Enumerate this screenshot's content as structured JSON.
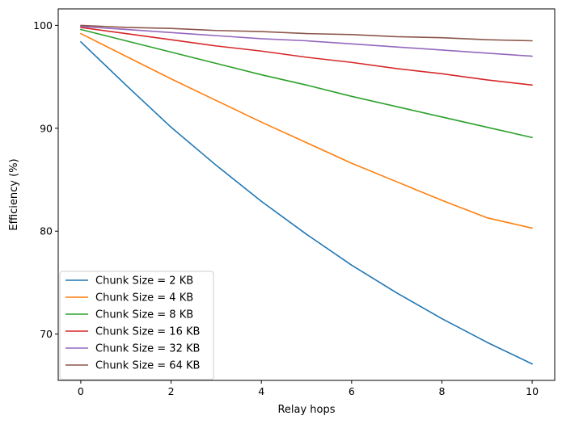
{
  "chart_data": {
    "type": "line",
    "title": "",
    "xlabel": "Relay hops",
    "ylabel": "Efficiency (%)",
    "xlim": [
      -0.5,
      10.5
    ],
    "ylim": [
      65.5,
      101.6
    ],
    "x_ticks": [
      0,
      2,
      4,
      6,
      8,
      10
    ],
    "y_ticks": [
      70,
      80,
      90,
      100
    ],
    "grid": false,
    "legend_position": "lower-left",
    "x": [
      0,
      1,
      2,
      3,
      4,
      5,
      6,
      7,
      8,
      9,
      10
    ],
    "series": [
      {
        "name": "Chunk Size = 2 KB",
        "color": "#1f77b4",
        "values": [
          98.4,
          94.2,
          90.1,
          86.4,
          82.9,
          79.7,
          76.7,
          74.0,
          71.5,
          69.2,
          67.1
        ]
      },
      {
        "name": "Chunk Size = 4 KB",
        "color": "#ff7f0e",
        "values": [
          99.2,
          97.0,
          94.8,
          92.7,
          90.6,
          88.6,
          86.6,
          84.8,
          83.0,
          81.3,
          80.3
        ]
      },
      {
        "name": "Chunk Size = 8 KB",
        "color": "#2ca02c",
        "values": [
          99.6,
          98.5,
          97.4,
          96.3,
          95.2,
          94.2,
          93.1,
          92.1,
          91.1,
          90.1,
          89.1
        ]
      },
      {
        "name": "Chunk Size = 16 KB",
        "color": "#d62728",
        "values": [
          99.8,
          99.2,
          98.6,
          98.0,
          97.5,
          96.9,
          96.4,
          95.8,
          95.3,
          94.7,
          94.2
        ]
      },
      {
        "name": "Chunk Size = 32 KB",
        "color": "#9467bd",
        "values": [
          99.9,
          99.6,
          99.3,
          99.0,
          98.7,
          98.5,
          98.2,
          97.9,
          97.6,
          97.3,
          97.0
        ]
      },
      {
        "name": "Chunk Size = 64 KB",
        "color": "#8c564b",
        "values": [
          100.0,
          99.8,
          99.7,
          99.5,
          99.4,
          99.2,
          99.1,
          98.9,
          98.8,
          98.6,
          98.5
        ]
      }
    ]
  }
}
